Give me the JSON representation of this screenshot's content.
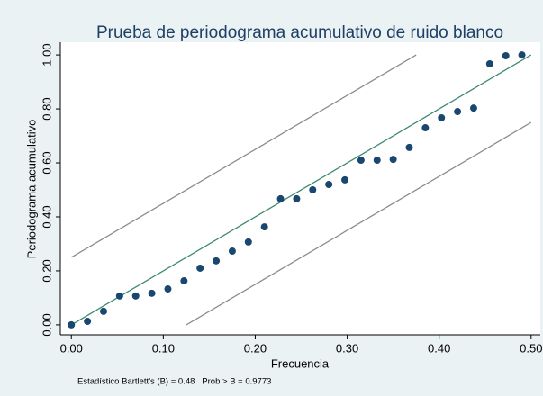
{
  "chart_data": {
    "type": "scatter",
    "title": "Prueba de periodograma acumulativo de ruido blanco",
    "x_label": "Frecuencia",
    "y_label": "Periodograma acumulativo",
    "note": "Estadístico Bartlett's (B) = 0.48   Prob > B = 0.9773",
    "x": [
      0,
      0.0175,
      0.035,
      0.0525,
      0.07,
      0.0875,
      0.105,
      0.1225,
      0.14,
      0.1575,
      0.175,
      0.1925,
      0.21,
      0.2275,
      0.245,
      0.2625,
      0.28,
      0.2975,
      0.315,
      0.3325,
      0.35,
      0.3675,
      0.385,
      0.4025,
      0.42,
      0.4375,
      0.455,
      0.4725,
      0.49
    ],
    "values": [
      0,
      0.013,
      0.05,
      0.107,
      0.107,
      0.117,
      0.133,
      0.163,
      0.21,
      0.237,
      0.273,
      0.307,
      0.363,
      0.467,
      0.467,
      0.5,
      0.52,
      0.537,
      0.61,
      0.61,
      0.613,
      0.657,
      0.73,
      0.767,
      0.79,
      0.803,
      0.967,
      0.997,
      1.0
    ],
    "color": "#1a476f",
    "lines": [
      {
        "x": [
          0,
          0.5
        ],
        "values": [
          0,
          1
        ],
        "color": "#3d8a6e"
      },
      {
        "x": [
          0,
          0.375
        ],
        "values": [
          0.25,
          1
        ],
        "color": "#8c8c8c"
      },
      {
        "x": [
          0.125,
          0.5
        ],
        "values": [
          0,
          0.75
        ],
        "color": "#8c8c8c"
      }
    ],
    "xlim": [
      -0.012,
      0.51
    ],
    "ylim": [
      -0.037,
      1.047
    ],
    "xticks": [
      {
        "value": 0,
        "label": "0.00"
      },
      {
        "value": 0.1,
        "label": "0.10"
      },
      {
        "value": 0.2,
        "label": "0.20"
      },
      {
        "value": 0.3,
        "label": "0.30"
      },
      {
        "value": 0.4,
        "label": "0.40"
      },
      {
        "value": 0.5,
        "label": "0.50"
      }
    ],
    "yticks": [
      {
        "value": 0,
        "label": "0.00"
      },
      {
        "value": 0.2,
        "label": "0.20"
      },
      {
        "value": 0.4,
        "label": "0.40"
      },
      {
        "value": 0.6,
        "label": "0.60"
      },
      {
        "value": 0.8,
        "label": "0.80"
      },
      {
        "value": 1,
        "label": "1.00"
      }
    ]
  }
}
